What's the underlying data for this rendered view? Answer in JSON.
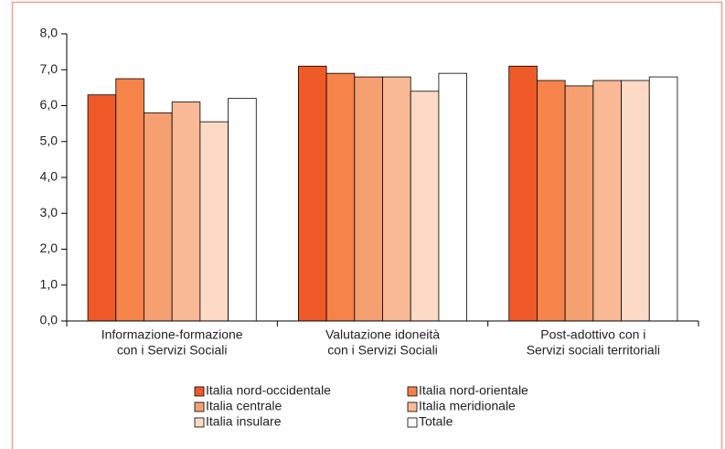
{
  "chart_data": {
    "type": "bar",
    "categories": [
      [
        "Informazione-formazione",
        "con i Servizi Sociali"
      ],
      [
        "Valutazione idoneità",
        "con i Servizi Sociali"
      ],
      [
        "Post-adottivo con i",
        "Servizi sociali territoriali"
      ]
    ],
    "series": [
      {
        "name": "Italia nord-occidentale",
        "color": "#f05a28",
        "values": [
          6.3,
          7.1,
          7.1
        ]
      },
      {
        "name": "Italia nord-orientale",
        "color": "#f5834a",
        "values": [
          6.75,
          6.9,
          6.7
        ]
      },
      {
        "name": "Italia centrale",
        "color": "#f6a072",
        "values": [
          5.8,
          6.8,
          6.55
        ]
      },
      {
        "name": "Italia meridionale",
        "color": "#f9b994",
        "values": [
          6.1,
          6.8,
          6.7
        ]
      },
      {
        "name": "Italia insulare",
        "color": "#fddac6",
        "values": [
          5.55,
          6.4,
          6.7
        ]
      },
      {
        "name": "Totale",
        "color": "#ffffff",
        "values": [
          6.2,
          6.9,
          6.8
        ]
      }
    ],
    "ylim": [
      0,
      8
    ],
    "yticks": [
      {
        "value": 0,
        "label": "0,0"
      },
      {
        "value": 1,
        "label": "1,0"
      },
      {
        "value": 2,
        "label": "2,0"
      },
      {
        "value": 3,
        "label": "3,0"
      },
      {
        "value": 4,
        "label": "4,0"
      },
      {
        "value": 5,
        "label": "5,0"
      },
      {
        "value": 6,
        "label": "6,0"
      },
      {
        "value": 7,
        "label": "7,0"
      },
      {
        "value": 8,
        "label": "8,0"
      }
    ]
  }
}
